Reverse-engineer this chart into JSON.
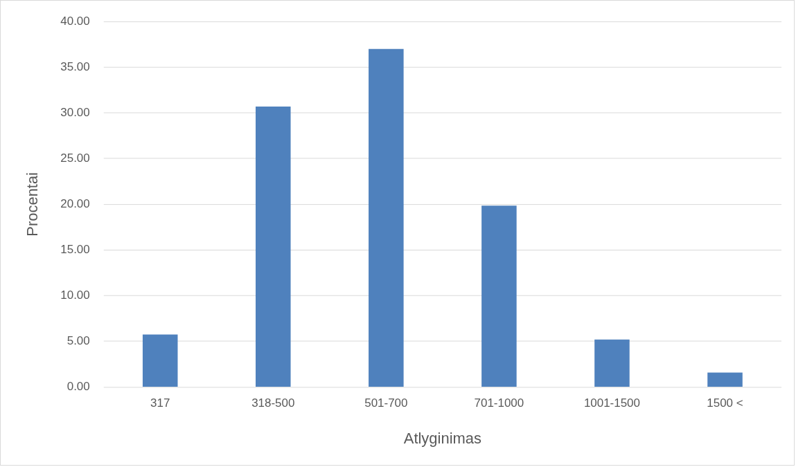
{
  "chart_data": {
    "type": "bar",
    "xlabel": "Atlyginimas",
    "ylabel": "Procentai",
    "categories": [
      "317",
      "318-500",
      "501-700",
      "701-1000",
      "1001-1500",
      "1500 <"
    ],
    "values": [
      5.75,
      30.7,
      37.0,
      19.85,
      5.2,
      1.6
    ],
    "color": "#4f81bd",
    "ylim": [
      0,
      40
    ],
    "yticks": [
      {
        "value": 0,
        "label": "0.00"
      },
      {
        "value": 5,
        "label": "5.00"
      },
      {
        "value": 10,
        "label": "10.00"
      },
      {
        "value": 15,
        "label": "15.00"
      },
      {
        "value": 20,
        "label": "20.00"
      },
      {
        "value": 25,
        "label": "25.00"
      },
      {
        "value": 30,
        "label": "30.00"
      },
      {
        "value": 35,
        "label": "35.00"
      },
      {
        "value": 40,
        "label": "40.00"
      }
    ],
    "grid": "y",
    "legend": false
  }
}
